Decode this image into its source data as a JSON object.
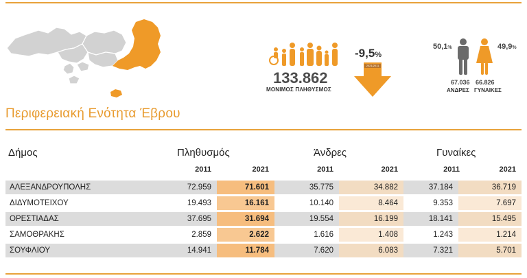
{
  "region_title": "Περιφερειακή Ενότητα Έβρου",
  "infographic": {
    "population_value": "133.862",
    "population_label": "ΜΟΝΙΜΟΣ ΠΛΗΘΥΣΜΟΣ",
    "change_value": "-9,5",
    "change_unit": "%",
    "change_years_tag": "2021/2011",
    "men_pct": "50,1",
    "women_pct": "49,9",
    "pct_unit": "%",
    "men_count": "67.036",
    "women_count": "66.826",
    "men_label": "ΑΝΔΡΕΣ",
    "women_label": "ΓΥΝΑΙΚΕΣ"
  },
  "colors": {
    "accent": "#e8a23a",
    "highlight_2021": "#f6bd7e",
    "soft_2021": "#f2dcc2",
    "row_grey": "#dcdcdc"
  },
  "table": {
    "header_municipality": "Δήμος",
    "header_population": "Πληθυσμός",
    "header_men": "Άνδρες",
    "header_women": "Γυναίκες",
    "year_a": "2011",
    "year_b": "2021",
    "rows": [
      {
        "name": "ΑΛΕΞΑΝΔΡΟΥΠΟΛΗΣ",
        "pop_2011": "72.959",
        "pop_2021": "71.601",
        "men_2011": "35.775",
        "men_2021": "34.882",
        "women_2011": "37.184",
        "women_2021": "36.719"
      },
      {
        "name": "ΔΙΔΥΜΟΤΕΙΧΟΥ",
        "pop_2011": "19.493",
        "pop_2021": "16.161",
        "men_2011": "10.140",
        "men_2021": "8.464",
        "women_2011": "9.353",
        "women_2021": "7.697"
      },
      {
        "name": "ΟΡΕΣΤΙΑΔΑΣ",
        "pop_2011": "37.695",
        "pop_2021": "31.694",
        "men_2011": "19.554",
        "men_2021": "16.199",
        "women_2011": "18.141",
        "women_2021": "15.495"
      },
      {
        "name": "ΣΑΜΟΘΡΑΚΗΣ",
        "pop_2011": "2.859",
        "pop_2021": "2.622",
        "men_2011": "1.616",
        "men_2021": "1.408",
        "women_2011": "1.243",
        "women_2021": "1.214"
      },
      {
        "name": "ΣΟΥΦΛΙΟΥ",
        "pop_2011": "14.941",
        "pop_2021": "11.784",
        "men_2011": "7.620",
        "men_2021": "6.083",
        "women_2011": "7.321",
        "women_2021": "5.701"
      }
    ]
  }
}
